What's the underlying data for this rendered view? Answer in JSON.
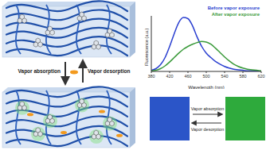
{
  "chart_data": {
    "type": "line",
    "x": [
      380,
      390,
      400,
      410,
      420,
      430,
      440,
      450,
      460,
      470,
      480,
      490,
      500,
      510,
      520,
      530,
      540,
      550,
      560,
      570,
      580,
      590,
      600,
      610,
      620
    ],
    "series": [
      {
        "name": "Before vapor exposure",
        "color": "#2a3fd0",
        "values": [
          2,
          5,
          12,
          25,
          45,
          68,
          88,
          97,
          95,
          82,
          62,
          45,
          33,
          25,
          18,
          13,
          9,
          6,
          4,
          3,
          2,
          1,
          1,
          0.5,
          0.3
        ]
      },
      {
        "name": "After vapor exposure",
        "color": "#3a9a3a",
        "values": [
          1,
          2,
          5,
          10,
          17,
          25,
          33,
          40,
          45,
          49,
          52,
          54,
          53,
          49,
          42,
          34,
          26,
          19,
          13,
          9,
          6,
          4,
          3,
          2,
          1
        ]
      }
    ],
    "xlabel": "Wavelength (nm)",
    "ylabel": "Fluorescence (a.u.)",
    "xlim": [
      380,
      620
    ],
    "xticks": [
      380,
      420,
      460,
      500,
      540,
      580,
      620
    ],
    "ylim": [
      0,
      100
    ],
    "tick_labels": "x",
    "legend": "upper right"
  },
  "diagram": {
    "process": {
      "absorption": "Vapor absorption",
      "desorption": "Vapor desorption"
    },
    "film": {
      "absorption": "Vapor absorption",
      "desorption": "Vapor desorption",
      "before_color": "#2b55c8",
      "after_color": "#2eaa3c"
    }
  }
}
